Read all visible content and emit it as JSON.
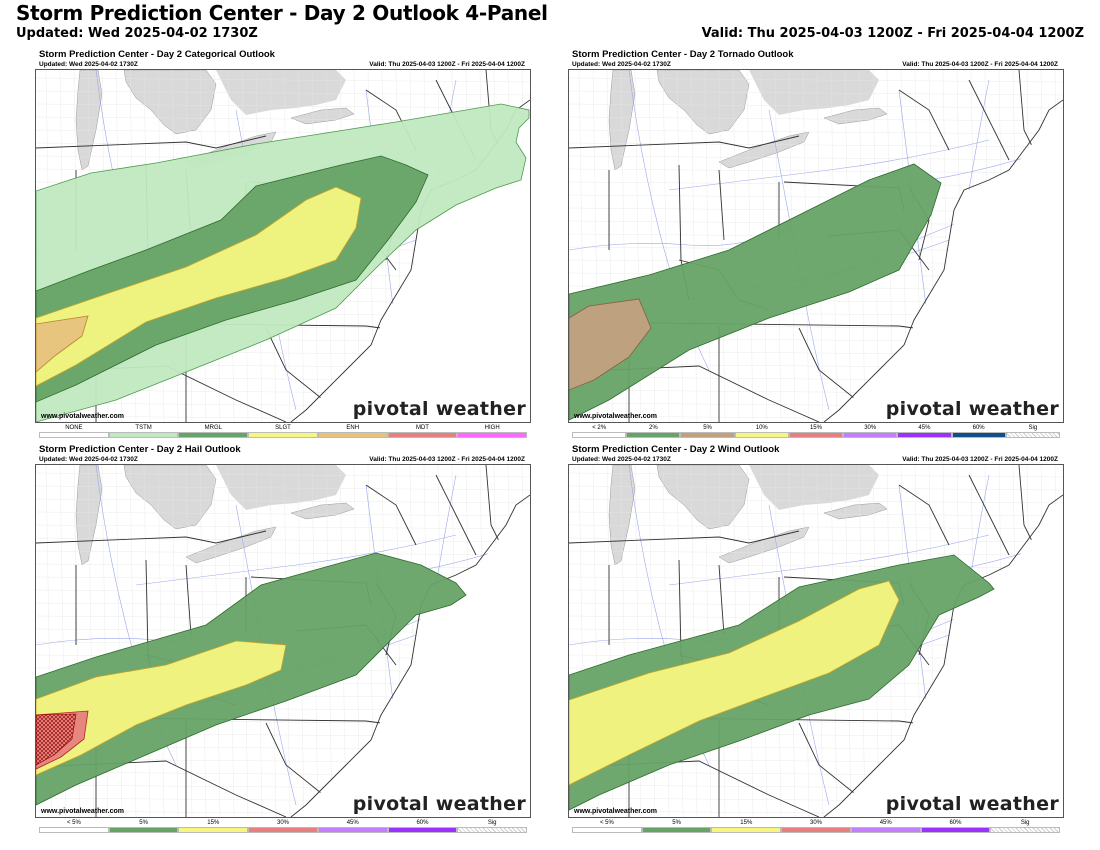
{
  "header": {
    "title": "Storm Prediction Center - Day 2 Outlook 4-Panel",
    "updated": "Updated: Wed 2025-04-02 1730Z",
    "valid": "Valid: Thu 2025-04-03 1200Z - Fri 2025-04-04 1200Z"
  },
  "panels": [
    {
      "title": "Storm Prediction Center - Day 2 Categorical Outlook",
      "updated": "Updated: Wed 2025-04-02 1730Z",
      "valid": "Valid: Thu 2025-04-03 1200Z - Fri 2025-04-04 1200Z",
      "website": "www.pivotalweather.com",
      "brand": "pivotal weather",
      "legend": [
        {
          "label": "NONE",
          "color": "#ffffff"
        },
        {
          "label": "TSTM",
          "color": "#c1e9c1"
        },
        {
          "label": "MRGL",
          "color": "#66a366"
        },
        {
          "label": "SLGT",
          "color": "#f6f67f"
        },
        {
          "label": "ENH",
          "color": "#e6c27f"
        },
        {
          "label": "MDT",
          "color": "#e67f7f"
        },
        {
          "label": "HIGH",
          "color": "#ff66ff"
        }
      ]
    },
    {
      "title": "Storm Prediction Center - Day 2 Tornado Outlook",
      "updated": "Updated: Wed 2025-04-02 1730Z",
      "valid": "Valid: Thu 2025-04-03 1200Z - Fri 2025-04-04 1200Z",
      "website": "www.pivotalweather.com",
      "brand": "pivotal weather",
      "legend": [
        {
          "label": "< 2%",
          "color": "#ffffff"
        },
        {
          "label": "2%",
          "color": "#66a366"
        },
        {
          "label": "5%",
          "color": "#c2a07f"
        },
        {
          "label": "10%",
          "color": "#f6f67f"
        },
        {
          "label": "15%",
          "color": "#e67f7f"
        },
        {
          "label": "30%",
          "color": "#c17fff"
        },
        {
          "label": "45%",
          "color": "#9b30ff"
        },
        {
          "label": "60%",
          "color": "#104e8b"
        },
        {
          "label": "Sig",
          "color": "hatch"
        }
      ]
    },
    {
      "title": "Storm Prediction Center - Day 2 Hail Outlook",
      "updated": "Updated: Wed 2025-04-02 1730Z",
      "valid": "Valid: Thu 2025-04-03 1200Z - Fri 2025-04-04 1200Z",
      "website": "www.pivotalweather.com",
      "brand": "pivotal weather",
      "legend": [
        {
          "label": "< 5%",
          "color": "#ffffff"
        },
        {
          "label": "5%",
          "color": "#66a366"
        },
        {
          "label": "15%",
          "color": "#f6f67f"
        },
        {
          "label": "30%",
          "color": "#e67f7f"
        },
        {
          "label": "45%",
          "color": "#c17fff"
        },
        {
          "label": "60%",
          "color": "#9b30ff"
        },
        {
          "label": "Sig",
          "color": "hatch"
        }
      ]
    },
    {
      "title": "Storm Prediction Center - Day 2 Wind Outlook",
      "updated": "Updated: Wed 2025-04-02 1730Z",
      "valid": "Valid: Thu 2025-04-03 1200Z - Fri 2025-04-04 1200Z",
      "website": "www.pivotalweather.com",
      "brand": "pivotal weather",
      "legend": [
        {
          "label": "< 5%",
          "color": "#ffffff"
        },
        {
          "label": "5%",
          "color": "#66a366"
        },
        {
          "label": "15%",
          "color": "#f6f67f"
        },
        {
          "label": "30%",
          "color": "#e67f7f"
        },
        {
          "label": "45%",
          "color": "#c17fff"
        },
        {
          "label": "60%",
          "color": "#9b30ff"
        },
        {
          "label": "Sig",
          "color": "hatch"
        }
      ]
    }
  ]
}
